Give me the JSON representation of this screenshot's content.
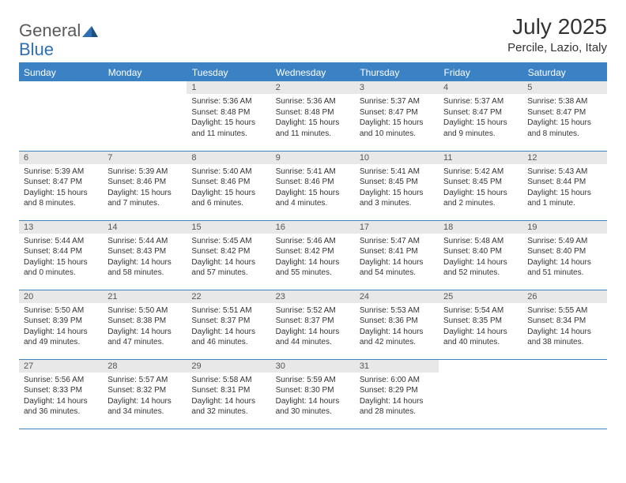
{
  "logo": {
    "text1": "General",
    "text2": "Blue",
    "icon_color": "#2f6fb3"
  },
  "header": {
    "title": "July 2025",
    "location": "Percile, Lazio, Italy"
  },
  "colors": {
    "header_bg": "#3b82c4",
    "header_text": "#ffffff",
    "daynum_bg": "#e8e8e8",
    "rule": "#3b82c4"
  },
  "weekdays": [
    "Sunday",
    "Monday",
    "Tuesday",
    "Wednesday",
    "Thursday",
    "Friday",
    "Saturday"
  ],
  "weeks": [
    [
      null,
      null,
      {
        "n": "1",
        "sr": "Sunrise: 5:36 AM",
        "ss": "Sunset: 8:48 PM",
        "d1": "Daylight: 15 hours",
        "d2": "and 11 minutes."
      },
      {
        "n": "2",
        "sr": "Sunrise: 5:36 AM",
        "ss": "Sunset: 8:48 PM",
        "d1": "Daylight: 15 hours",
        "d2": "and 11 minutes."
      },
      {
        "n": "3",
        "sr": "Sunrise: 5:37 AM",
        "ss": "Sunset: 8:47 PM",
        "d1": "Daylight: 15 hours",
        "d2": "and 10 minutes."
      },
      {
        "n": "4",
        "sr": "Sunrise: 5:37 AM",
        "ss": "Sunset: 8:47 PM",
        "d1": "Daylight: 15 hours",
        "d2": "and 9 minutes."
      },
      {
        "n": "5",
        "sr": "Sunrise: 5:38 AM",
        "ss": "Sunset: 8:47 PM",
        "d1": "Daylight: 15 hours",
        "d2": "and 8 minutes."
      }
    ],
    [
      {
        "n": "6",
        "sr": "Sunrise: 5:39 AM",
        "ss": "Sunset: 8:47 PM",
        "d1": "Daylight: 15 hours",
        "d2": "and 8 minutes."
      },
      {
        "n": "7",
        "sr": "Sunrise: 5:39 AM",
        "ss": "Sunset: 8:46 PM",
        "d1": "Daylight: 15 hours",
        "d2": "and 7 minutes."
      },
      {
        "n": "8",
        "sr": "Sunrise: 5:40 AM",
        "ss": "Sunset: 8:46 PM",
        "d1": "Daylight: 15 hours",
        "d2": "and 6 minutes."
      },
      {
        "n": "9",
        "sr": "Sunrise: 5:41 AM",
        "ss": "Sunset: 8:46 PM",
        "d1": "Daylight: 15 hours",
        "d2": "and 4 minutes."
      },
      {
        "n": "10",
        "sr": "Sunrise: 5:41 AM",
        "ss": "Sunset: 8:45 PM",
        "d1": "Daylight: 15 hours",
        "d2": "and 3 minutes."
      },
      {
        "n": "11",
        "sr": "Sunrise: 5:42 AM",
        "ss": "Sunset: 8:45 PM",
        "d1": "Daylight: 15 hours",
        "d2": "and 2 minutes."
      },
      {
        "n": "12",
        "sr": "Sunrise: 5:43 AM",
        "ss": "Sunset: 8:44 PM",
        "d1": "Daylight: 15 hours",
        "d2": "and 1 minute."
      }
    ],
    [
      {
        "n": "13",
        "sr": "Sunrise: 5:44 AM",
        "ss": "Sunset: 8:44 PM",
        "d1": "Daylight: 15 hours",
        "d2": "and 0 minutes."
      },
      {
        "n": "14",
        "sr": "Sunrise: 5:44 AM",
        "ss": "Sunset: 8:43 PM",
        "d1": "Daylight: 14 hours",
        "d2": "and 58 minutes."
      },
      {
        "n": "15",
        "sr": "Sunrise: 5:45 AM",
        "ss": "Sunset: 8:42 PM",
        "d1": "Daylight: 14 hours",
        "d2": "and 57 minutes."
      },
      {
        "n": "16",
        "sr": "Sunrise: 5:46 AM",
        "ss": "Sunset: 8:42 PM",
        "d1": "Daylight: 14 hours",
        "d2": "and 55 minutes."
      },
      {
        "n": "17",
        "sr": "Sunrise: 5:47 AM",
        "ss": "Sunset: 8:41 PM",
        "d1": "Daylight: 14 hours",
        "d2": "and 54 minutes."
      },
      {
        "n": "18",
        "sr": "Sunrise: 5:48 AM",
        "ss": "Sunset: 8:40 PM",
        "d1": "Daylight: 14 hours",
        "d2": "and 52 minutes."
      },
      {
        "n": "19",
        "sr": "Sunrise: 5:49 AM",
        "ss": "Sunset: 8:40 PM",
        "d1": "Daylight: 14 hours",
        "d2": "and 51 minutes."
      }
    ],
    [
      {
        "n": "20",
        "sr": "Sunrise: 5:50 AM",
        "ss": "Sunset: 8:39 PM",
        "d1": "Daylight: 14 hours",
        "d2": "and 49 minutes."
      },
      {
        "n": "21",
        "sr": "Sunrise: 5:50 AM",
        "ss": "Sunset: 8:38 PM",
        "d1": "Daylight: 14 hours",
        "d2": "and 47 minutes."
      },
      {
        "n": "22",
        "sr": "Sunrise: 5:51 AM",
        "ss": "Sunset: 8:37 PM",
        "d1": "Daylight: 14 hours",
        "d2": "and 46 minutes."
      },
      {
        "n": "23",
        "sr": "Sunrise: 5:52 AM",
        "ss": "Sunset: 8:37 PM",
        "d1": "Daylight: 14 hours",
        "d2": "and 44 minutes."
      },
      {
        "n": "24",
        "sr": "Sunrise: 5:53 AM",
        "ss": "Sunset: 8:36 PM",
        "d1": "Daylight: 14 hours",
        "d2": "and 42 minutes."
      },
      {
        "n": "25",
        "sr": "Sunrise: 5:54 AM",
        "ss": "Sunset: 8:35 PM",
        "d1": "Daylight: 14 hours",
        "d2": "and 40 minutes."
      },
      {
        "n": "26",
        "sr": "Sunrise: 5:55 AM",
        "ss": "Sunset: 8:34 PM",
        "d1": "Daylight: 14 hours",
        "d2": "and 38 minutes."
      }
    ],
    [
      {
        "n": "27",
        "sr": "Sunrise: 5:56 AM",
        "ss": "Sunset: 8:33 PM",
        "d1": "Daylight: 14 hours",
        "d2": "and 36 minutes."
      },
      {
        "n": "28",
        "sr": "Sunrise: 5:57 AM",
        "ss": "Sunset: 8:32 PM",
        "d1": "Daylight: 14 hours",
        "d2": "and 34 minutes."
      },
      {
        "n": "29",
        "sr": "Sunrise: 5:58 AM",
        "ss": "Sunset: 8:31 PM",
        "d1": "Daylight: 14 hours",
        "d2": "and 32 minutes."
      },
      {
        "n": "30",
        "sr": "Sunrise: 5:59 AM",
        "ss": "Sunset: 8:30 PM",
        "d1": "Daylight: 14 hours",
        "d2": "and 30 minutes."
      },
      {
        "n": "31",
        "sr": "Sunrise: 6:00 AM",
        "ss": "Sunset: 8:29 PM",
        "d1": "Daylight: 14 hours",
        "d2": "and 28 minutes."
      },
      null,
      null
    ]
  ]
}
